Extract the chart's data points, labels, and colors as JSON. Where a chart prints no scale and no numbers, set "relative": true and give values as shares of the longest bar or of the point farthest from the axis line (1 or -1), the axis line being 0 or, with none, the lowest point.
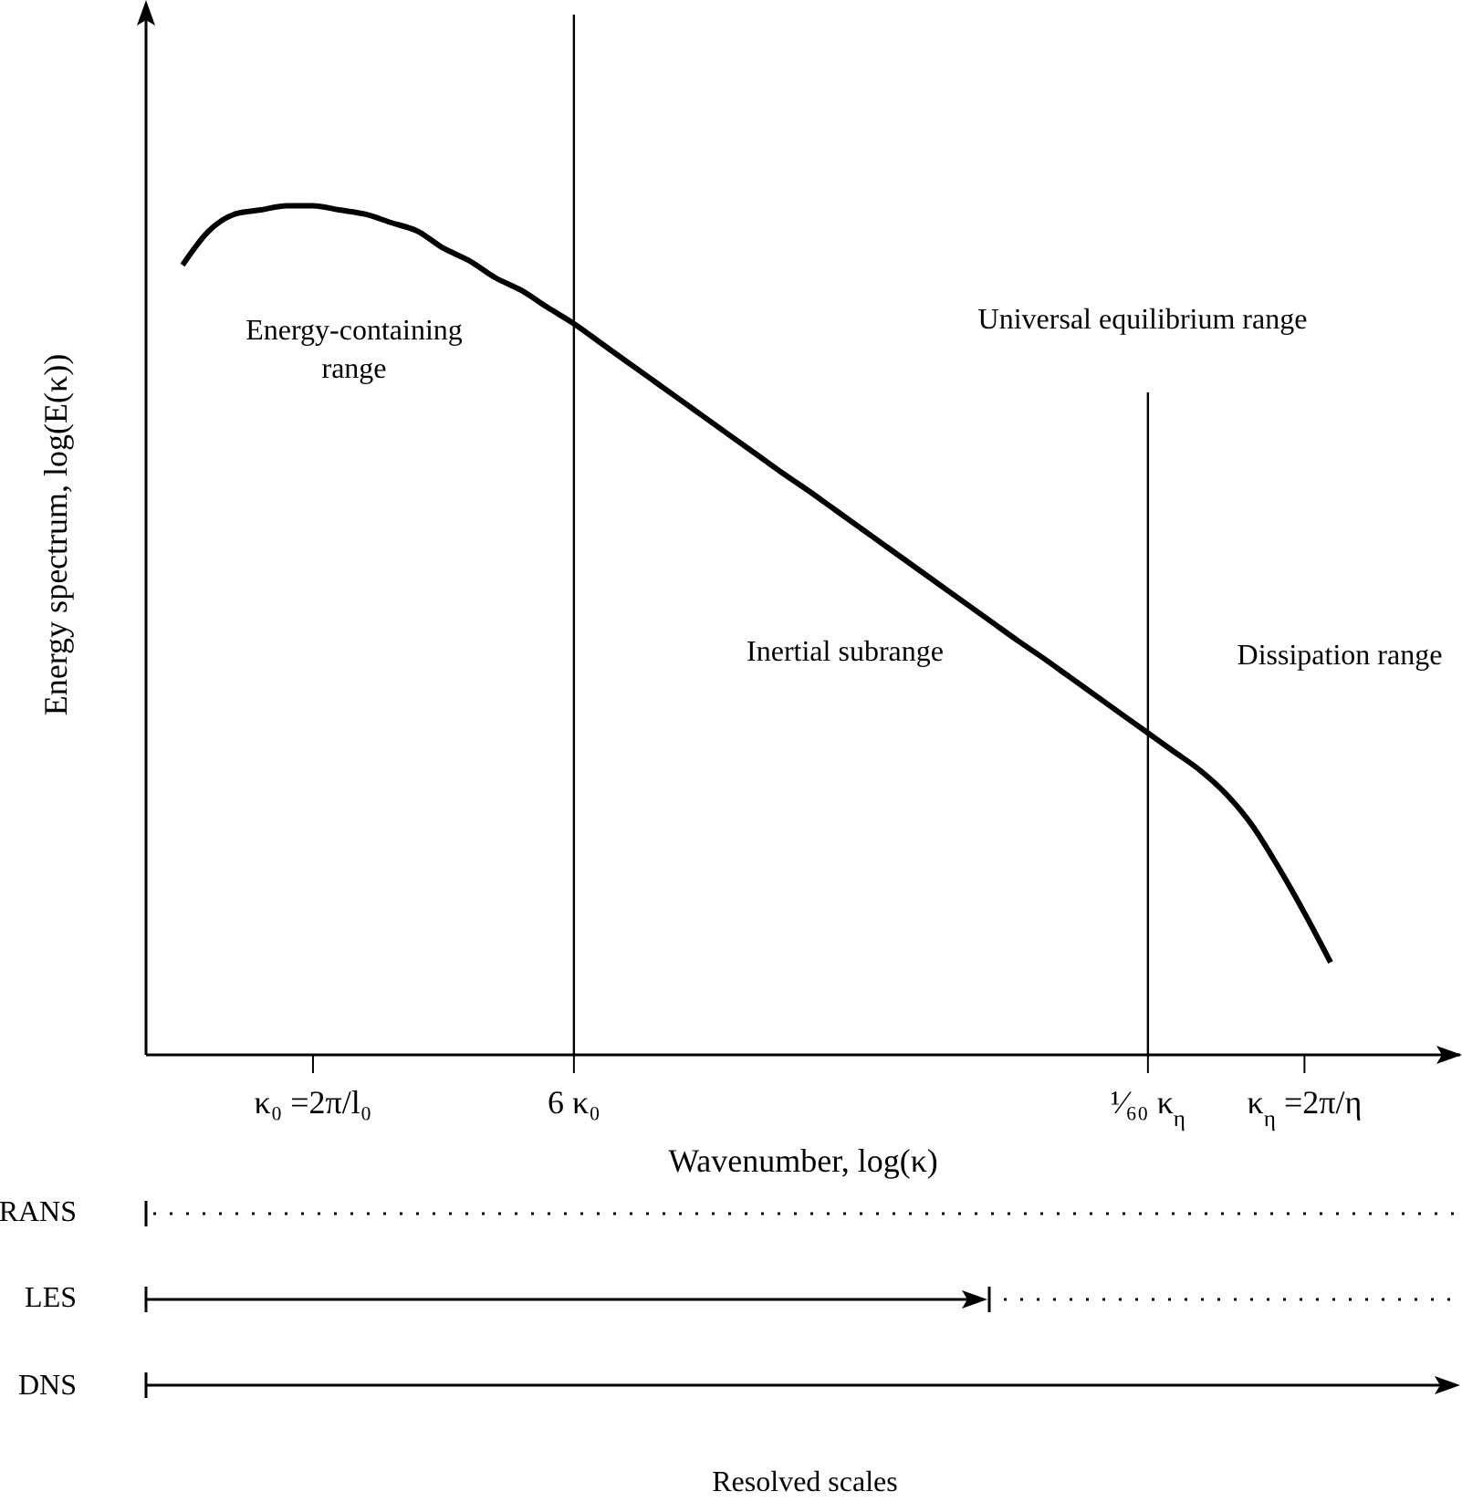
{
  "chart_data": {
    "type": "line",
    "relative": true,
    "xlabel": "Wavenumber, log(κ)",
    "ylabel": "Energy spectrum, log(E(κ))",
    "categories": [
      null,
      null,
      null,
      null,
      null,
      "κ₀ =2π/l₀",
      null,
      null,
      null,
      null,
      null,
      null,
      null,
      null,
      null,
      "6 κ₀",
      null,
      null,
      null,
      null,
      null,
      null,
      null,
      null,
      null,
      null,
      null,
      null,
      null,
      null,
      null,
      null,
      null,
      null,
      null,
      null,
      null,
      "¹⁄₆₀ κ$_{η}$",
      null,
      null,
      null,
      null,
      null,
      "κ$_{η}$ =2π/η",
      null
    ],
    "series": [
      {
        "color": "#000000",
        "values": [
          0.93,
          0.97,
          0.99,
          0.995,
          1.0,
          1.0,
          0.995,
          0.99,
          0.98,
          0.97,
          0.95,
          0.935,
          0.915,
          0.9,
          0.88,
          0.861,
          0.839,
          0.817,
          0.795,
          0.773,
          0.751,
          0.729,
          0.707,
          0.685,
          0.664,
          0.642,
          0.62,
          0.598,
          0.576,
          0.554,
          0.532,
          0.51,
          0.488,
          0.467,
          0.445,
          0.423,
          0.401,
          0.379,
          0.357,
          0.335,
          0.307,
          0.27,
          0.221,
          0.167,
          0.109
        ]
      }
    ],
    "ref_lines": [
      {
        "axis": "x",
        "value": "6 κ₀",
        "color": "#000000"
      },
      {
        "axis": "x",
        "value": "¹⁄₆₀ κ$_{η}$",
        "color": "#000000"
      }
    ],
    "annotations": [
      "Energy-containing range",
      "Universal equilibrium range",
      "Inertial subrange",
      "Dissipation range",
      "RANS",
      "LES",
      "DNS",
      "Resolved scales"
    ],
    "grid": false,
    "legend": false,
    "marker": "none",
    "line_style": "solid"
  }
}
